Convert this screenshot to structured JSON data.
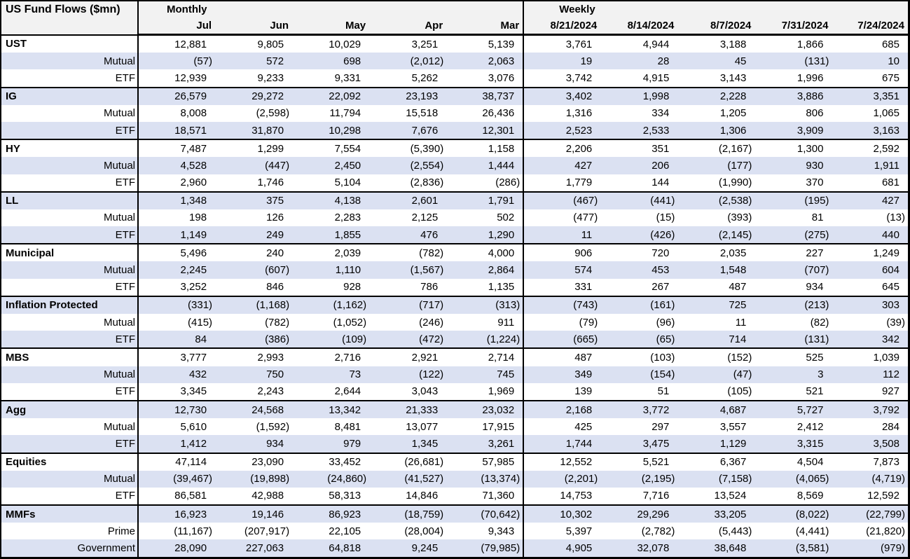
{
  "title": "US Fund Flows ($mn)",
  "colors": {
    "band_fill": "#dbe1f2",
    "header_fill": "#f2f2f2",
    "border": "#000000",
    "text": "#000000"
  },
  "header": {
    "monthly_label": "Monthly",
    "weekly_label": "Weekly",
    "monthly_columns": [
      "Jul",
      "Jun",
      "May",
      "Apr",
      "Mar"
    ],
    "weekly_columns": [
      "8/21/2024",
      "8/14/2024",
      "8/7/2024",
      "7/31/2024",
      "7/24/2024"
    ]
  },
  "sections": [
    {
      "rows": [
        {
          "label": "UST",
          "category": true,
          "monthly": [
            "12,881",
            "9,805",
            "10,029",
            "3,251",
            "5,139"
          ],
          "weekly": [
            "3,761",
            "4,944",
            "3,188",
            "1,866",
            "685"
          ]
        },
        {
          "label": "Mutual",
          "category": false,
          "monthly": [
            "(57)",
            "572",
            "698",
            "(2,012)",
            "2,063"
          ],
          "weekly": [
            "19",
            "28",
            "45",
            "(131)",
            "10"
          ]
        },
        {
          "label": "ETF",
          "category": false,
          "monthly": [
            "12,939",
            "9,233",
            "9,331",
            "5,262",
            "3,076"
          ],
          "weekly": [
            "3,742",
            "4,915",
            "3,143",
            "1,996",
            "675"
          ]
        }
      ]
    },
    {
      "rows": [
        {
          "label": "IG",
          "category": true,
          "monthly": [
            "26,579",
            "29,272",
            "22,092",
            "23,193",
            "38,737"
          ],
          "weekly": [
            "3,402",
            "1,998",
            "2,228",
            "3,886",
            "3,351"
          ]
        },
        {
          "label": "Mutual",
          "category": false,
          "monthly": [
            "8,008",
            "(2,598)",
            "11,794",
            "15,518",
            "26,436"
          ],
          "weekly": [
            "1,316",
            "334",
            "1,205",
            "806",
            "1,065"
          ]
        },
        {
          "label": "ETF",
          "category": false,
          "monthly": [
            "18,571",
            "31,870",
            "10,298",
            "7,676",
            "12,301"
          ],
          "weekly": [
            "2,523",
            "2,533",
            "1,306",
            "3,909",
            "3,163"
          ]
        }
      ]
    },
    {
      "rows": [
        {
          "label": "HY",
          "category": true,
          "monthly": [
            "7,487",
            "1,299",
            "7,554",
            "(5,390)",
            "1,158"
          ],
          "weekly": [
            "2,206",
            "351",
            "(2,167)",
            "1,300",
            "2,592"
          ]
        },
        {
          "label": "Mutual",
          "category": false,
          "monthly": [
            "4,528",
            "(447)",
            "2,450",
            "(2,554)",
            "1,444"
          ],
          "weekly": [
            "427",
            "206",
            "(177)",
            "930",
            "1,911"
          ]
        },
        {
          "label": "ETF",
          "category": false,
          "monthly": [
            "2,960",
            "1,746",
            "5,104",
            "(2,836)",
            "(286)"
          ],
          "weekly": [
            "1,779",
            "144",
            "(1,990)",
            "370",
            "681"
          ]
        }
      ]
    },
    {
      "rows": [
        {
          "label": "LL",
          "category": true,
          "monthly": [
            "1,348",
            "375",
            "4,138",
            "2,601",
            "1,791"
          ],
          "weekly": [
            "(467)",
            "(441)",
            "(2,538)",
            "(195)",
            "427"
          ]
        },
        {
          "label": "Mutual",
          "category": false,
          "monthly": [
            "198",
            "126",
            "2,283",
            "2,125",
            "502"
          ],
          "weekly": [
            "(477)",
            "(15)",
            "(393)",
            "81",
            "(13)"
          ]
        },
        {
          "label": "ETF",
          "category": false,
          "monthly": [
            "1,149",
            "249",
            "1,855",
            "476",
            "1,290"
          ],
          "weekly": [
            "11",
            "(426)",
            "(2,145)",
            "(275)",
            "440"
          ]
        }
      ]
    },
    {
      "rows": [
        {
          "label": "Municipal",
          "category": true,
          "monthly": [
            "5,496",
            "240",
            "2,039",
            "(782)",
            "4,000"
          ],
          "weekly": [
            "906",
            "720",
            "2,035",
            "227",
            "1,249"
          ]
        },
        {
          "label": "Mutual",
          "category": false,
          "monthly": [
            "2,245",
            "(607)",
            "1,110",
            "(1,567)",
            "2,864"
          ],
          "weekly": [
            "574",
            "453",
            "1,548",
            "(707)",
            "604"
          ]
        },
        {
          "label": "ETF",
          "category": false,
          "monthly": [
            "3,252",
            "846",
            "928",
            "786",
            "1,135"
          ],
          "weekly": [
            "331",
            "267",
            "487",
            "934",
            "645"
          ]
        }
      ]
    },
    {
      "rows": [
        {
          "label": "Inflation Protected",
          "category": true,
          "monthly": [
            "(331)",
            "(1,168)",
            "(1,162)",
            "(717)",
            "(313)"
          ],
          "weekly": [
            "(743)",
            "(161)",
            "725",
            "(213)",
            "303"
          ]
        },
        {
          "label": "Mutual",
          "category": false,
          "monthly": [
            "(415)",
            "(782)",
            "(1,052)",
            "(246)",
            "911"
          ],
          "weekly": [
            "(79)",
            "(96)",
            "11",
            "(82)",
            "(39)"
          ]
        },
        {
          "label": "ETF",
          "category": false,
          "monthly": [
            "84",
            "(386)",
            "(109)",
            "(472)",
            "(1,224)"
          ],
          "weekly": [
            "(665)",
            "(65)",
            "714",
            "(131)",
            "342"
          ]
        }
      ]
    },
    {
      "rows": [
        {
          "label": "MBS",
          "category": true,
          "monthly": [
            "3,777",
            "2,993",
            "2,716",
            "2,921",
            "2,714"
          ],
          "weekly": [
            "487",
            "(103)",
            "(152)",
            "525",
            "1,039"
          ]
        },
        {
          "label": "Mutual",
          "category": false,
          "monthly": [
            "432",
            "750",
            "73",
            "(122)",
            "745"
          ],
          "weekly": [
            "349",
            "(154)",
            "(47)",
            "3",
            "112"
          ]
        },
        {
          "label": "ETF",
          "category": false,
          "monthly": [
            "3,345",
            "2,243",
            "2,644",
            "3,043",
            "1,969"
          ],
          "weekly": [
            "139",
            "51",
            "(105)",
            "521",
            "927"
          ]
        }
      ]
    },
    {
      "rows": [
        {
          "label": "Agg",
          "category": true,
          "monthly": [
            "12,730",
            "24,568",
            "13,342",
            "21,333",
            "23,032"
          ],
          "weekly": [
            "2,168",
            "3,772",
            "4,687",
            "5,727",
            "3,792"
          ]
        },
        {
          "label": "Mutual",
          "category": false,
          "monthly": [
            "5,610",
            "(1,592)",
            "8,481",
            "13,077",
            "17,915"
          ],
          "weekly": [
            "425",
            "297",
            "3,557",
            "2,412",
            "284"
          ]
        },
        {
          "label": "ETF",
          "category": false,
          "monthly": [
            "1,412",
            "934",
            "979",
            "1,345",
            "3,261"
          ],
          "weekly": [
            "1,744",
            "3,475",
            "1,129",
            "3,315",
            "3,508"
          ]
        }
      ]
    },
    {
      "rows": [
        {
          "label": "Equities",
          "category": true,
          "monthly": [
            "47,114",
            "23,090",
            "33,452",
            "(26,681)",
            "57,985"
          ],
          "weekly": [
            "12,552",
            "5,521",
            "6,367",
            "4,504",
            "7,873"
          ]
        },
        {
          "label": "Mutual",
          "category": false,
          "monthly": [
            "(39,467)",
            "(19,898)",
            "(24,860)",
            "(41,527)",
            "(13,374)"
          ],
          "weekly": [
            "(2,201)",
            "(2,195)",
            "(7,158)",
            "(4,065)",
            "(4,719)"
          ]
        },
        {
          "label": "ETF",
          "category": false,
          "monthly": [
            "86,581",
            "42,988",
            "58,313",
            "14,846",
            "71,360"
          ],
          "weekly": [
            "14,753",
            "7,716",
            "13,524",
            "8,569",
            "12,592"
          ]
        }
      ]
    },
    {
      "rows": [
        {
          "label": "MMFs",
          "category": true,
          "monthly": [
            "16,923",
            "19,146",
            "86,923",
            "(18,759)",
            "(70,642)"
          ],
          "weekly": [
            "10,302",
            "29,296",
            "33,205",
            "(8,022)",
            "(22,799)"
          ]
        },
        {
          "label": "Prime",
          "category": false,
          "monthly": [
            "(11,167)",
            "(207,917)",
            "22,105",
            "(28,004)",
            "9,343"
          ],
          "weekly": [
            "5,397",
            "(2,782)",
            "(5,443)",
            "(4,441)",
            "(21,820)"
          ]
        },
        {
          "label": "Government",
          "category": false,
          "monthly": [
            "28,090",
            "227,063",
            "64,818",
            "9,245",
            "(79,985)"
          ],
          "weekly": [
            "4,905",
            "32,078",
            "38,648",
            "(3,581)",
            "(979)"
          ]
        }
      ]
    }
  ]
}
